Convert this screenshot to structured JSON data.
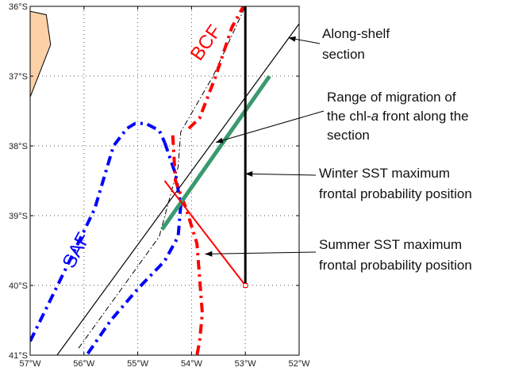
{
  "map": {
    "lon_range_W": [
      57,
      52
    ],
    "lat_range_S": [
      36,
      41
    ],
    "grid": "dotted",
    "x_ticks": [
      {
        "value": -57,
        "label": "57°W"
      },
      {
        "value": -56,
        "label": "56°W"
      },
      {
        "value": -55,
        "label": "55°W"
      },
      {
        "value": -54,
        "label": "54°W"
      },
      {
        "value": -53,
        "label": "53°W"
      },
      {
        "value": -52,
        "label": "52°W"
      }
    ],
    "y_ticks": [
      {
        "value": -36,
        "label": "36°S"
      },
      {
        "value": -37,
        "label": "37°S"
      },
      {
        "value": -38,
        "label": "38°S"
      },
      {
        "value": -39,
        "label": "39°S"
      },
      {
        "value": -40,
        "label": "40°S"
      },
      {
        "value": -41,
        "label": "41°S"
      }
    ],
    "colors": {
      "land": "#fdd1a8",
      "bcf": "#ff0000",
      "saf": "#0000ff",
      "green_range": "#3a9a6e",
      "section": "#000000"
    },
    "front_labels": {
      "bcf": "BCF",
      "saf": "SAF"
    }
  },
  "annotations": {
    "along_shelf": [
      "Along-shelf",
      "section"
    ],
    "range": [
      "Range of migration of",
      "the chl-a front along the",
      "section"
    ],
    "winter": [
      "Winter SST maximum",
      "frontal probability position"
    ],
    "summer": [
      "Summer SST maximum",
      "frontal probability position"
    ]
  },
  "lines": {
    "land": [
      [
        -57,
        -36.07
      ],
      [
        -56.7,
        -36.12
      ],
      [
        -56.62,
        -36.55
      ],
      [
        -57,
        -37.3
      ]
    ],
    "along_shelf_section": [
      [
        -56.5,
        -41
      ],
      [
        -52,
        -36.25
      ]
    ],
    "thin_dashdot": [
      [
        -56.1,
        -40.9
      ],
      [
        -54.6,
        -39.3
      ],
      [
        -54.25,
        -38.3
      ],
      [
        -54.2,
        -37.8
      ],
      [
        -53.6,
        -37.0
      ],
      [
        -53.0,
        -36.0
      ]
    ],
    "bcf_upper": [
      [
        -54.05,
        -37.75
      ],
      [
        -53.85,
        -37.6
      ],
      [
        -53.55,
        -37.0
      ],
      [
        -53.25,
        -36.3
      ],
      [
        -53.0,
        -35.95
      ]
    ],
    "bcf_lower": [
      [
        -54.35,
        -37.85
      ],
      [
        -54.3,
        -38.5
      ],
      [
        -54.1,
        -38.9
      ],
      [
        -53.9,
        -39.4
      ],
      [
        -53.85,
        -39.9
      ],
      [
        -53.8,
        -40.4
      ],
      [
        -53.85,
        -40.8
      ],
      [
        -53.9,
        -41.0
      ]
    ],
    "saf_left": [
      [
        -57,
        -40.8
      ],
      [
        -56.3,
        -39.7
      ],
      [
        -55.8,
        -38.9
      ],
      [
        -55.45,
        -38.0
      ],
      [
        -55.2,
        -37.75
      ],
      [
        -55.05,
        -37.68
      ],
      [
        -54.85,
        -37.68
      ],
      [
        -54.6,
        -37.78
      ],
      [
        -54.5,
        -37.95
      ]
    ],
    "saf_right": [
      [
        -54.5,
        -37.95
      ],
      [
        -54.3,
        -38.4
      ],
      [
        -54.2,
        -38.85
      ],
      [
        -54.25,
        -39.3
      ],
      [
        -54.5,
        -39.65
      ],
      [
        -55.0,
        -40.05
      ],
      [
        -55.5,
        -40.5
      ],
      [
        -55.95,
        -41.0
      ]
    ],
    "green_range": [
      [
        -54.55,
        -39.2
      ],
      [
        -52.55,
        -37.0
      ]
    ],
    "winter_line": [
      [
        -53.0,
        -36.0
      ],
      [
        -53.0,
        -40.0
      ]
    ],
    "summer_line": [
      [
        -54.5,
        -38.5
      ],
      [
        -53.0,
        -40.0
      ]
    ],
    "summer_marker": [
      -53.0,
      -40.0
    ]
  },
  "arrows": {
    "along_shelf": {
      "tip": [
        -52.2,
        -36.45
      ]
    },
    "range": {
      "tip": [
        -53.55,
        -37.95
      ]
    },
    "winter": {
      "tip": [
        -53.0,
        -38.4
      ]
    },
    "summer": {
      "tip": [
        -53.75,
        -39.55
      ]
    }
  }
}
